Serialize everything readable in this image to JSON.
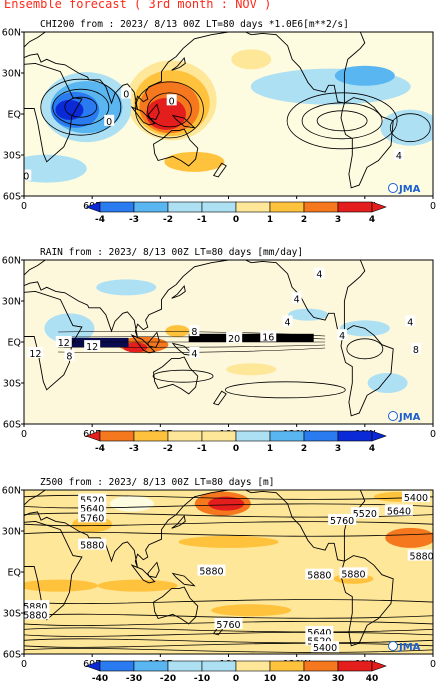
{
  "header": "Ensemble forecast ( 3rd month : NOV )",
  "colors": {
    "header": "#ff2a1a",
    "neg4": "#0a2ad8",
    "neg3": "#2a7af0",
    "neg2": "#5ab6f0",
    "neg1": "#aee0f4",
    "zero_lo": "#ffffff",
    "zero_hi": "#fdfbe0",
    "pos1": "#ffe79a",
    "pos2": "#ffc23c",
    "pos3": "#f5781e",
    "pos4": "#e41d1d",
    "land": "#000000",
    "jma": "#1a5fd0"
  },
  "chart_data": [
    {
      "type": "heatmap",
      "title": "CHI200  from : 2023/  8/13  00Z  LT=80  days   *1.0E6[m**2/s]",
      "lat_ticks": [
        "60N",
        "30N",
        "EQ",
        "30S",
        "60S"
      ],
      "lon_ticks": [
        "0",
        "60E",
        "120E",
        "180",
        "120W",
        "60W",
        "0"
      ],
      "colorbar_ticks": [
        "-4",
        "-3",
        "-2",
        "-1",
        "0",
        "1",
        "2",
        "3",
        "4"
      ],
      "contour_labels": [
        "0",
        "0",
        "0",
        "4",
        "0"
      ],
      "logo": "JMA"
    },
    {
      "type": "heatmap",
      "title": "RAIN   from : 2023/  8/13  00Z  LT=80  days   [mm/day]",
      "lat_ticks": [
        "60N",
        "30N",
        "EQ",
        "30S",
        "60S"
      ],
      "lon_ticks": [
        "0",
        "60E",
        "120E",
        "180",
        "120W",
        "60W",
        "0"
      ],
      "colorbar_ticks": [
        "-4",
        "-3",
        "-2",
        "-1",
        "0",
        "1",
        "2",
        "3",
        "4"
      ],
      "contour_labels": [
        "4",
        "4",
        "8",
        "12",
        "20",
        "12",
        "16",
        "4",
        "8",
        "12",
        "8",
        "4",
        "4",
        "4"
      ],
      "logo": "JMA"
    },
    {
      "type": "heatmap",
      "title": "Z500   from : 2023/  8/13  00Z  LT=80  days   [m]",
      "lat_ticks": [
        "60N",
        "30N",
        "EQ",
        "30S",
        "60S"
      ],
      "lon_ticks": [
        "0",
        "60E",
        "120E",
        "180",
        "120W",
        "60W",
        "0"
      ],
      "colorbar_ticks": [
        "-40",
        "-30",
        "-20",
        "-10",
        "0",
        "10",
        "20",
        "30",
        "40"
      ],
      "contour_labels": [
        "5400",
        "5520",
        "5640",
        "5760",
        "5880",
        "5520",
        "5640",
        "5760",
        "5880",
        "5880",
        "5880",
        "5880",
        "5880",
        "5880",
        "5760",
        "5640",
        "5520",
        "5400"
      ],
      "logo": "JMA"
    }
  ]
}
